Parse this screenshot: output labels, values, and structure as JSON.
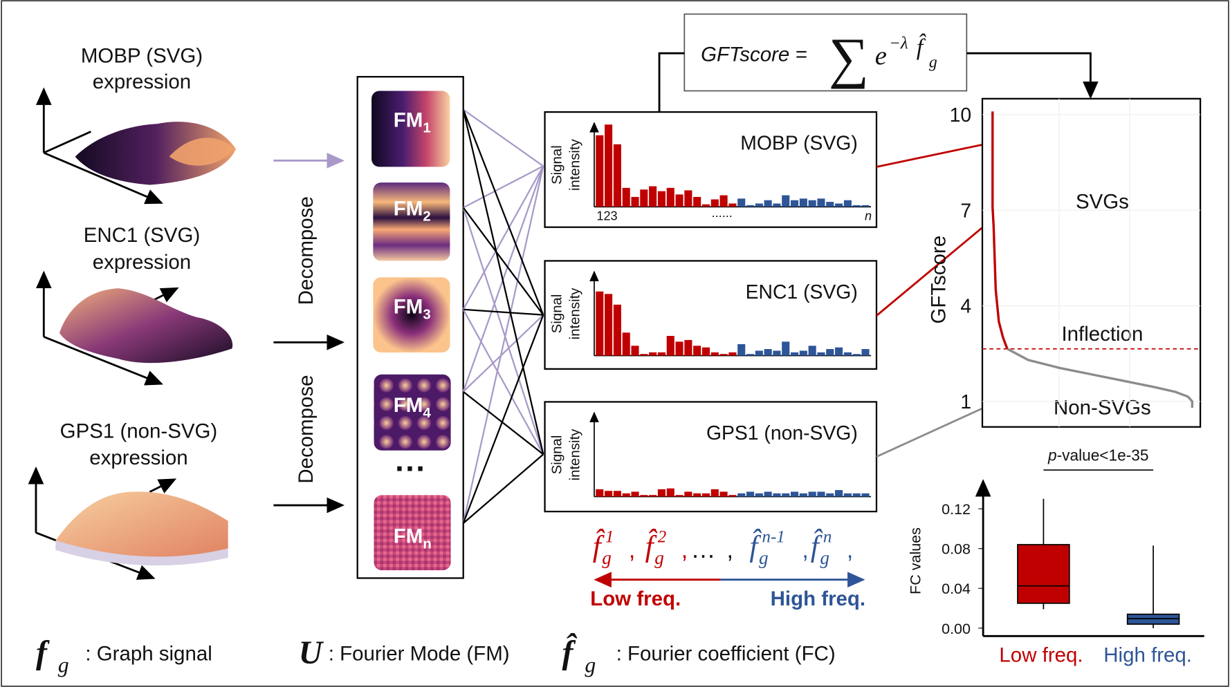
{
  "left_panel": {
    "genes": [
      {
        "name": "MOBP (SVG)",
        "caption": "expression"
      },
      {
        "name": "ENC1 (SVG)",
        "caption": "expression"
      },
      {
        "name": "GPS1 (non-SVG)",
        "caption": "expression"
      }
    ],
    "decompose": [
      "Decompose",
      "Decompose"
    ]
  },
  "fourier_modes": {
    "items": [
      {
        "label": "FM",
        "sub": "1"
      },
      {
        "label": "FM",
        "sub": "2"
      },
      {
        "label": "FM",
        "sub": "3"
      },
      {
        "label": "FM",
        "sub": "4"
      },
      {
        "label": "FM",
        "sub": "n"
      }
    ],
    "ellipsis": "···"
  },
  "formula": {
    "lhs": "GFTscore =",
    "sum": "∑",
    "base": "e",
    "exponent": "−λ",
    "coef": "f̂",
    "coef_sub": "g"
  },
  "spectra": {
    "y_label": [
      "Signal",
      "intensity"
    ],
    "x_labels": [
      "123",
      "......",
      "n"
    ],
    "ylim": [
      0,
      100
    ],
    "low_color": "#c00000",
    "high_color": "#2e5597",
    "charts": [
      {
        "title": "MOBP (SVG)",
        "low_freq": [
          87,
          100,
          76,
          23,
          12,
          21,
          25,
          19,
          23,
          15,
          20,
          12,
          3,
          9,
          14,
          4
        ],
        "high_freq": [
          10,
          2,
          4,
          8,
          4,
          14,
          8,
          10,
          8,
          10,
          6,
          4,
          8,
          2,
          2
        ]
      },
      {
        "title": "ENC1 (SVG)",
        "low_freq": [
          78,
          75,
          62,
          28,
          12,
          2,
          4,
          4,
          24,
          17,
          19,
          12,
          10,
          4,
          2,
          4
        ],
        "high_freq": [
          14,
          2,
          6,
          8,
          6,
          17,
          4,
          6,
          12,
          4,
          8,
          10,
          4,
          2,
          8
        ]
      },
      {
        "title": "GPS1 (non-SVG)",
        "low_freq": [
          9,
          7,
          7,
          4,
          6,
          2,
          2,
          9,
          10,
          2,
          6,
          4,
          4,
          9,
          6,
          2
        ],
        "high_freq": [
          4,
          6,
          4,
          6,
          4,
          4,
          6,
          4,
          6,
          6,
          4,
          8,
          4,
          4,
          4
        ]
      }
    ]
  },
  "frequency_axis": {
    "coef": "f̂",
    "sub": "g",
    "sups": [
      "1",
      "2",
      "n-1",
      "n"
    ],
    "separator": ",",
    "ellipsis": "…",
    "low": "Low freq.",
    "high": "High freq."
  },
  "score_plot": {
    "y_label": "GFTscore",
    "ylim": [
      0.2,
      10.5
    ],
    "xlim": [
      0,
      1
    ],
    "yticks": [
      10,
      7,
      4,
      1
    ],
    "inflection": 2.65,
    "labels": {
      "svgs": "SVGs",
      "inflection": "Inflection",
      "non_svgs": "Non-SVGs"
    },
    "svg_genes": {
      "color": "#c00000",
      "x": [
        0.03,
        0.03,
        0.03,
        0.03,
        0.03,
        0.035,
        0.04,
        0.045,
        0.06,
        0.08,
        0.1
      ],
      "y": [
        10.1,
        9.5,
        8.8,
        8.0,
        7.1,
        6.5,
        5.5,
        4.5,
        3.5,
        3.0,
        2.65
      ]
    },
    "non_svg_genes": {
      "color": "#8c8c8c",
      "x": [
        0.1,
        0.2,
        0.35,
        0.5,
        0.65,
        0.8,
        0.9,
        0.96,
        0.98,
        0.98
      ],
      "y": [
        2.65,
        2.3,
        2.05,
        1.85,
        1.65,
        1.45,
        1.3,
        1.15,
        1.0,
        0.8
      ]
    }
  },
  "box_plot": {
    "y_label": "FC values",
    "ylim": [
      -0.008,
      0.148
    ],
    "yticks": [
      {
        "value": 0,
        "label": "0.00"
      },
      {
        "value": 0.04,
        "label": "0.04"
      },
      {
        "value": 0.08,
        "label": "0.08"
      },
      {
        "value": 0.12,
        "label": "0.12"
      }
    ],
    "annotation": {
      "italic": "p",
      "rest": "-value<1e-35"
    },
    "categories": [
      "Low freq.",
      "High freq."
    ],
    "colors": [
      "#c00000",
      "#2e5597"
    ],
    "boxes": [
      {
        "min": 0.019,
        "q1": 0.025,
        "median": 0.0425,
        "q3": 0.084,
        "max": 0.13
      },
      {
        "min": 0,
        "q1": 0.004,
        "median": 0.0095,
        "q3": 0.014,
        "max": 0.083
      }
    ]
  },
  "legend": [
    {
      "symbol": "f",
      "sub": "g",
      "text": ": Graph signal"
    },
    {
      "symbol": "U",
      "text": ": Fourier Mode (FM)"
    },
    {
      "symbol": "f̂",
      "sub": "g",
      "text": ": Fourier coefficient (FC)"
    }
  ]
}
